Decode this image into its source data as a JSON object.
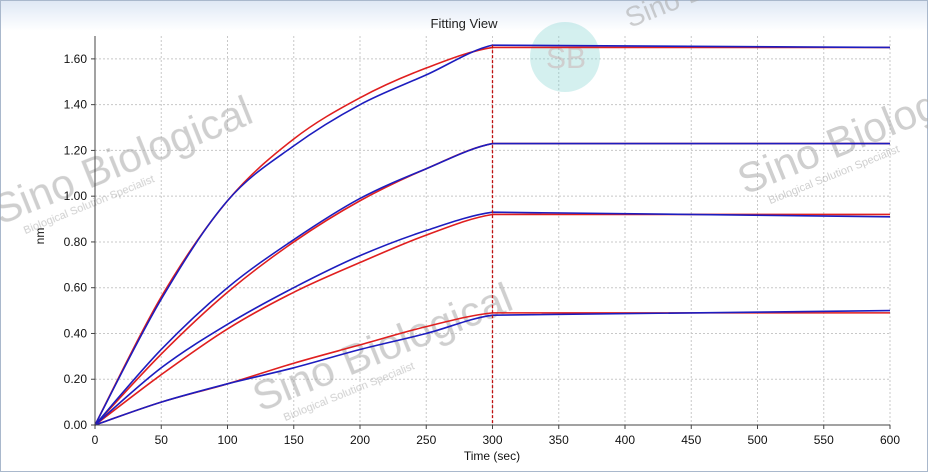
{
  "window": {
    "title": "Fitting View"
  },
  "watermark": {
    "brand": "Sino Biological",
    "tagline": "Biological Solution Specialist",
    "logo": "SB"
  },
  "colors": {
    "fit": "#e01f1f",
    "measured": "#1d1dbf",
    "marker": "#c01010",
    "grid": "#c8c8c8",
    "logo": "#7fd3d0"
  },
  "chart_data": {
    "type": "line",
    "title": "Fitting View",
    "xlabel": "Time (sec)",
    "ylabel": "nm",
    "xlim": [
      0,
      600
    ],
    "ylim": [
      0,
      1.7
    ],
    "x_ticks": [
      0,
      50,
      100,
      150,
      200,
      250,
      300,
      350,
      400,
      450,
      500,
      550,
      600
    ],
    "x_tick_labels": [
      "0",
      "50",
      "100",
      "150",
      "200",
      "250",
      "300",
      "350",
      "400",
      "450",
      "500",
      "550",
      "600"
    ],
    "y_ticks": [
      0,
      0.2,
      0.4,
      0.6,
      0.8,
      1.0,
      1.2,
      1.4,
      1.6
    ],
    "y_tick_labels": [
      "0.00",
      "0.20",
      "0.40",
      "0.60",
      "0.80",
      "1.00",
      "1.20",
      "1.40",
      "1.60"
    ],
    "grid": true,
    "phase_marker_x": 300,
    "curves": [
      {
        "fit": [
          [
            0,
            0
          ],
          [
            50,
            0.56
          ],
          [
            100,
            0.98
          ],
          [
            150,
            1.25
          ],
          [
            200,
            1.43
          ],
          [
            250,
            1.56
          ],
          [
            300,
            1.65
          ],
          [
            600,
            1.65
          ]
        ],
        "measured": [
          [
            0,
            0
          ],
          [
            50,
            0.55
          ],
          [
            100,
            0.98
          ],
          [
            150,
            1.22
          ],
          [
            200,
            1.4
          ],
          [
            250,
            1.53
          ],
          [
            300,
            1.66
          ],
          [
            600,
            1.65
          ]
        ]
      },
      {
        "fit": [
          [
            0,
            0
          ],
          [
            50,
            0.31
          ],
          [
            100,
            0.58
          ],
          [
            150,
            0.8
          ],
          [
            200,
            0.98
          ],
          [
            250,
            1.12
          ],
          [
            300,
            1.23
          ],
          [
            600,
            1.23
          ]
        ],
        "measured": [
          [
            0,
            0
          ],
          [
            50,
            0.33
          ],
          [
            100,
            0.6
          ],
          [
            150,
            0.81
          ],
          [
            200,
            0.99
          ],
          [
            250,
            1.12
          ],
          [
            300,
            1.23
          ],
          [
            600,
            1.23
          ]
        ]
      },
      {
        "fit": [
          [
            0,
            0
          ],
          [
            50,
            0.22
          ],
          [
            100,
            0.42
          ],
          [
            150,
            0.58
          ],
          [
            200,
            0.71
          ],
          [
            250,
            0.83
          ],
          [
            300,
            0.92
          ],
          [
            600,
            0.92
          ]
        ],
        "measured": [
          [
            0,
            0
          ],
          [
            50,
            0.25
          ],
          [
            100,
            0.44
          ],
          [
            150,
            0.6
          ],
          [
            200,
            0.74
          ],
          [
            250,
            0.85
          ],
          [
            300,
            0.93
          ],
          [
            600,
            0.91
          ]
        ]
      },
      {
        "fit": [
          [
            0,
            0
          ],
          [
            50,
            0.1
          ],
          [
            100,
            0.18
          ],
          [
            150,
            0.27
          ],
          [
            200,
            0.35
          ],
          [
            250,
            0.43
          ],
          [
            300,
            0.49
          ],
          [
            600,
            0.49
          ]
        ],
        "measured": [
          [
            0,
            0
          ],
          [
            50,
            0.1
          ],
          [
            100,
            0.18
          ],
          [
            150,
            0.25
          ],
          [
            200,
            0.33
          ],
          [
            250,
            0.4
          ],
          [
            300,
            0.48
          ],
          [
            600,
            0.5
          ]
        ]
      }
    ]
  }
}
